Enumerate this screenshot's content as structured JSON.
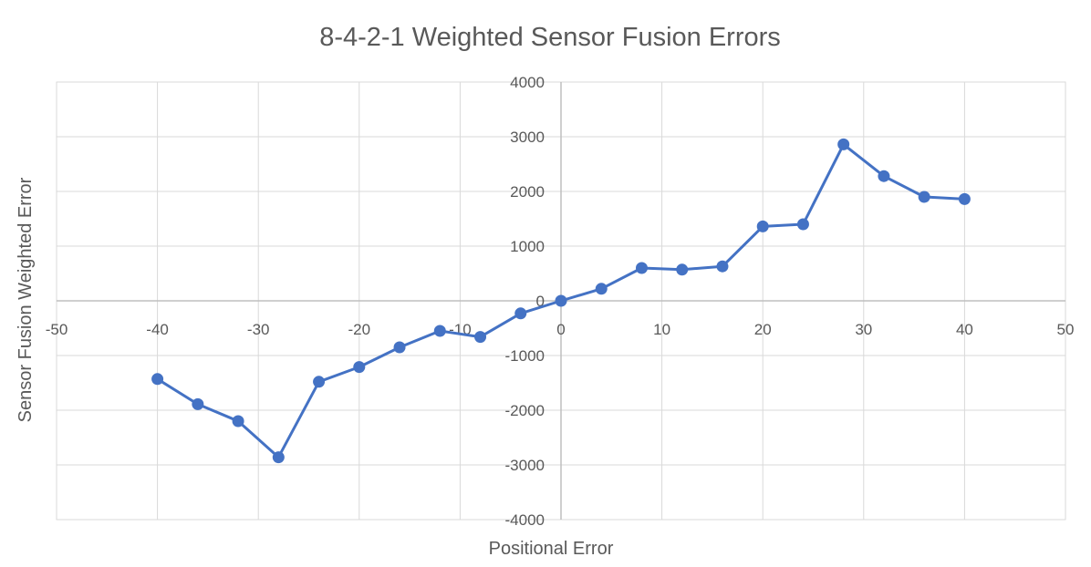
{
  "chart_data": {
    "type": "scatter",
    "title": "8-4-2-1 Weighted Sensor Fusion Errors",
    "xlabel": "Positional Error",
    "ylabel": "Sensor Fusion Weighted Error",
    "xlim": [
      -50,
      50
    ],
    "ylim": [
      -4000,
      4000
    ],
    "x_ticks": [
      -50,
      -40,
      -30,
      -20,
      -10,
      0,
      10,
      20,
      30,
      40,
      50
    ],
    "y_ticks": [
      -4000,
      -3000,
      -2000,
      -1000,
      0,
      1000,
      2000,
      3000,
      4000
    ],
    "grid": true,
    "legend": "none",
    "line_style": "lines-with-markers",
    "series": [
      {
        "color": "#4472c4",
        "x": [
          -40,
          -36,
          -32,
          -28,
          -24,
          -20,
          -16,
          -12,
          -8,
          -4,
          0,
          4,
          8,
          12,
          16,
          20,
          24,
          28,
          32,
          36,
          40
        ],
        "y": [
          -1430,
          -1890,
          -2200,
          -2860,
          -1480,
          -1210,
          -850,
          -550,
          -660,
          -230,
          0,
          220,
          600,
          570,
          630,
          1360,
          1400,
          2860,
          2280,
          1900,
          1860
        ]
      }
    ]
  }
}
